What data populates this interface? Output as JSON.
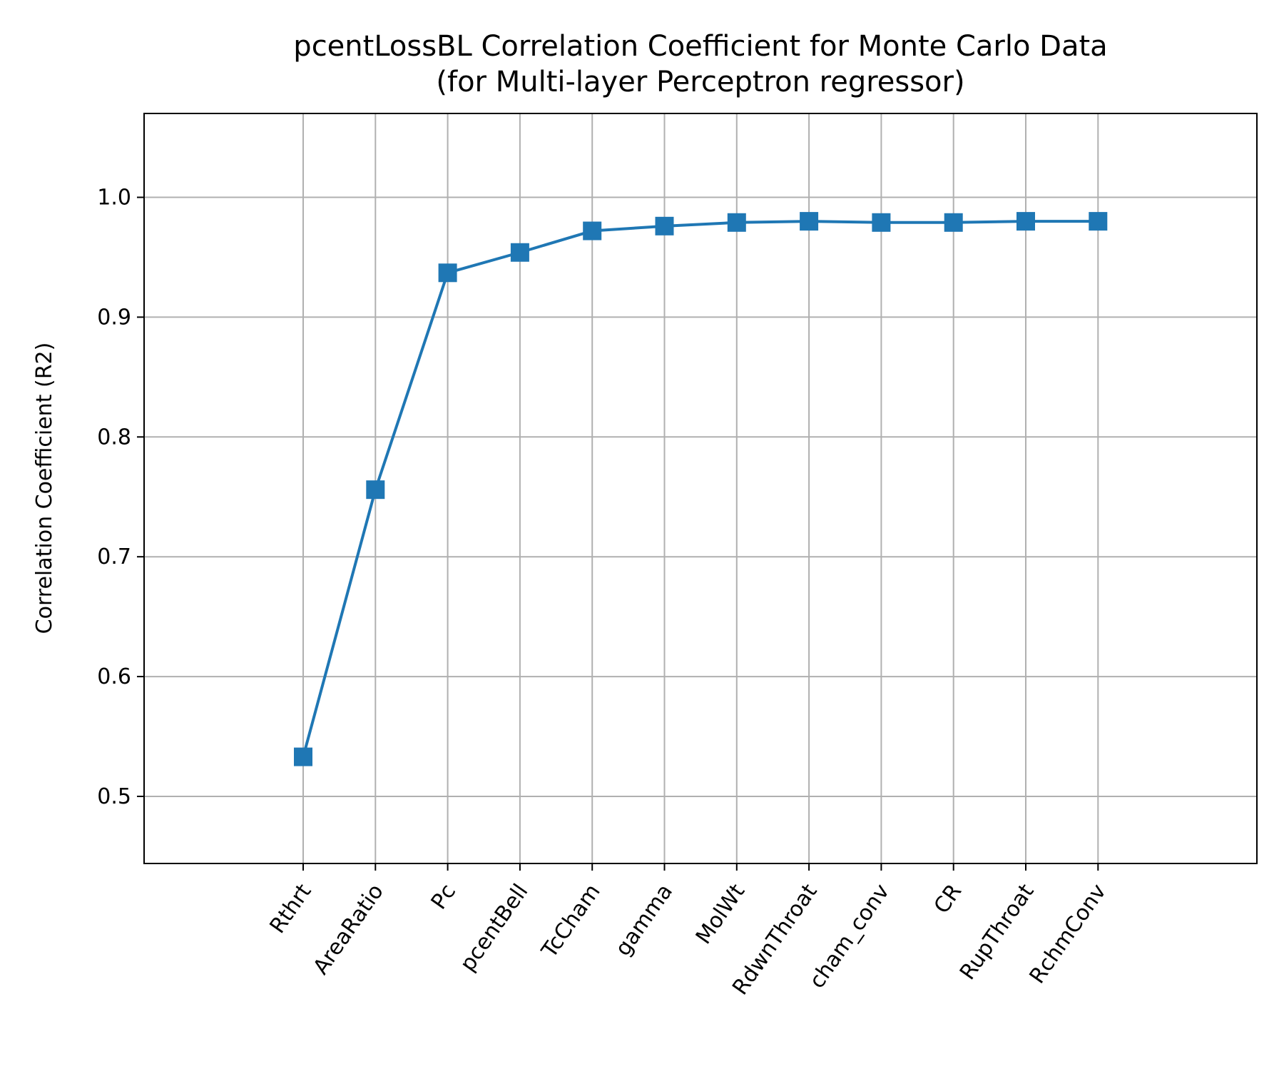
{
  "chart_data": {
    "type": "line",
    "title": "pcentLossBL Correlation Coefficient for Monte Carlo Data",
    "subtitle": "(for Multi-layer Perceptron regressor)",
    "xlabel": "",
    "ylabel": "Correlation Coefficient (R2)",
    "categories": [
      "Rthrt",
      "AreaRatio",
      "Pc",
      "pcentBell",
      "TcCham",
      "gamma",
      "MolWt",
      "RdwnThroat",
      "cham_conv",
      "CR",
      "RupThroat",
      "RchmConv"
    ],
    "values": [
      0.533,
      0.756,
      0.937,
      0.954,
      0.972,
      0.976,
      0.979,
      0.98,
      0.979,
      0.979,
      0.98,
      0.98
    ],
    "ylim": [
      0.444,
      1.07
    ],
    "yticks": [
      0.5,
      0.6,
      0.7,
      0.8,
      0.9,
      1.0
    ],
    "ytick_labels": [
      "0.5",
      "0.6",
      "0.7",
      "0.8",
      "0.9",
      "1.0"
    ],
    "grid": true,
    "marker": "square",
    "line_color": "#1f77b4",
    "grid_color": "#b0b0b0"
  }
}
